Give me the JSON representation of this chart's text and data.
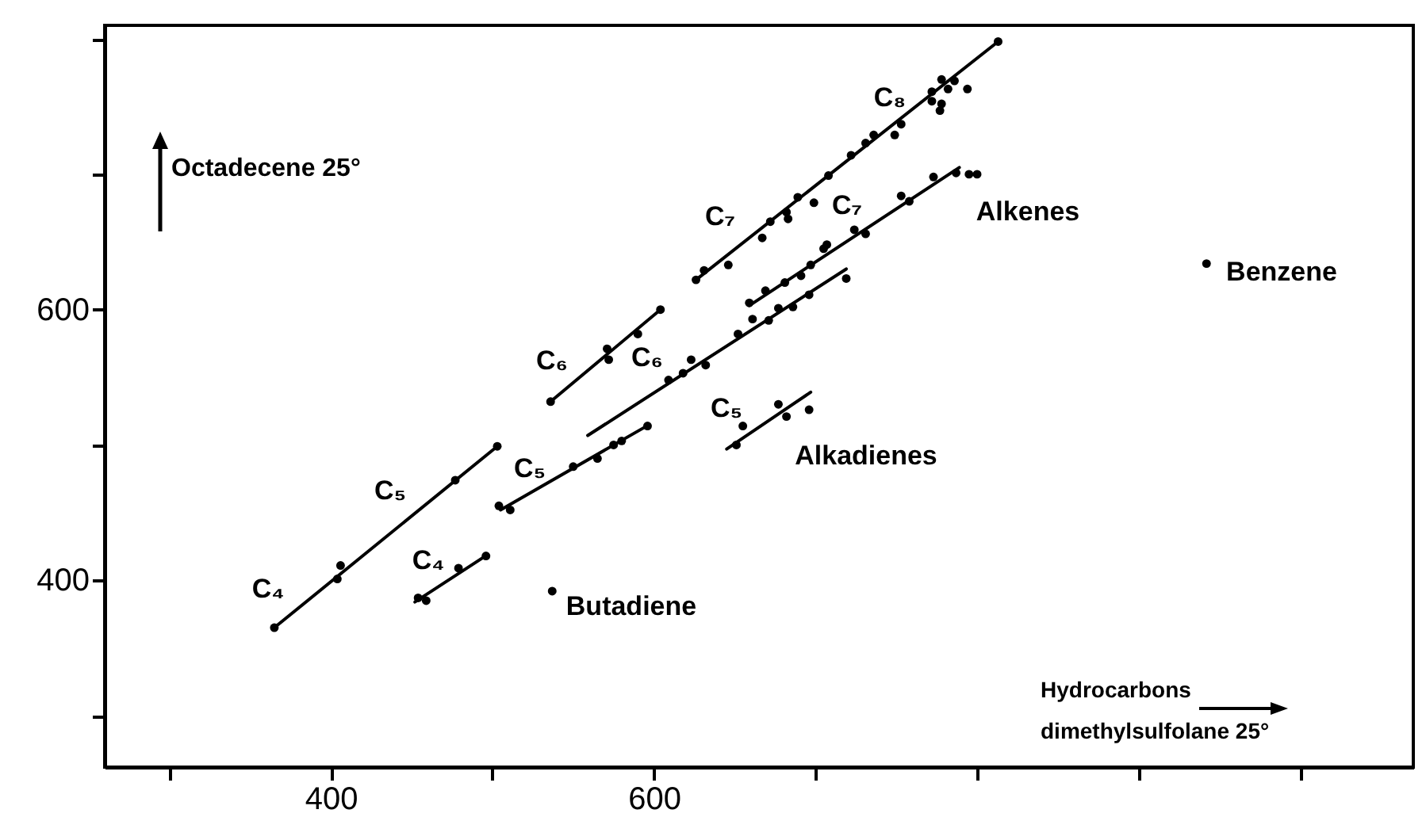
{
  "chart_data": {
    "type": "scatter",
    "xlabel": "Hydrocarbons\ndimethylsulfolane 25°",
    "ylabel": "Octadecene 25°",
    "xlim": [
      260,
      1070
    ],
    "ylim": [
      262,
      810
    ],
    "xticks": [
      {
        "value": 300,
        "label": null
      },
      400,
      {
        "value": 500,
        "label": null
      },
      600,
      {
        "value": 700,
        "label": null
      },
      {
        "value": 800,
        "label": null
      },
      {
        "value": 900,
        "label": null
      },
      {
        "value": 1000,
        "label": null
      }
    ],
    "yticks": [
      {
        "value": 300,
        "label": null
      },
      400,
      {
        "value": 500,
        "label": null
      },
      600,
      {
        "value": 700,
        "label": null
      },
      {
        "value": 800,
        "label": null
      }
    ],
    "grid": false,
    "series": [
      {
        "marker": "circle",
        "color": "#000000",
        "x": [
          365,
          404,
          406,
          477,
          503,
          536,
          571,
          572,
          590,
          604,
          626,
          631,
          646,
          667,
          672,
          683,
          682,
          689,
          699,
          708,
          722,
          731,
          736,
          749,
          753,
          772,
          778,
          786,
          794,
          778,
          777,
          772,
          782,
          813
        ],
        "values": [
          365,
          401,
          411,
          474,
          499,
          532,
          571,
          563,
          582,
          600,
          622,
          629,
          633,
          653,
          665,
          667,
          672,
          683,
          679,
          699,
          714,
          723,
          729,
          729,
          737,
          761,
          770,
          769,
          763,
          752,
          747,
          754,
          763,
          798
        ]
      },
      {
        "marker": "circle",
        "color": "#000000",
        "x": [
          454,
          459,
          479,
          496,
          504,
          511,
          550,
          565,
          575,
          580,
          596,
          609,
          618,
          623,
          632,
          652,
          661,
          671,
          677,
          686,
          696,
          719,
          659,
          669,
          681,
          691,
          697,
          705,
          707,
          724,
          731,
          753,
          758,
          773,
          787,
          795,
          800,
          651,
          655,
          677,
          682,
          696,
          537,
          942
        ],
        "values": [
          387,
          385,
          409,
          418,
          455,
          452,
          484,
          490,
          500,
          503,
          514,
          548,
          553,
          563,
          559,
          582,
          593,
          592,
          601,
          602,
          611,
          623,
          605,
          614,
          620,
          625,
          633,
          645,
          648,
          659,
          656,
          684,
          680,
          698,
          701,
          700,
          700,
          500,
          514,
          530,
          521,
          526,
          392,
          634
        ]
      },
      {
        "type": "line",
        "color": "#000000",
        "x": [
          365,
          503
        ],
        "values": [
          365,
          499
        ]
      },
      {
        "type": "line",
        "color": "#000000",
        "x": [
          452,
          497
        ],
        "values": [
          384,
          419
        ]
      },
      {
        "type": "line",
        "color": "#000000",
        "x": [
          505,
          597
        ],
        "values": [
          452,
          515
        ]
      },
      {
        "type": "line",
        "color": "#000000",
        "x": [
          536,
          604
        ],
        "values": [
          532,
          600
        ]
      },
      {
        "type": "line",
        "color": "#000000",
        "x": [
          559,
          719
        ],
        "values": [
          507,
          630
        ]
      },
      {
        "type": "line",
        "color": "#000000",
        "x": [
          659,
          789
        ],
        "values": [
          603,
          705
        ]
      },
      {
        "type": "line",
        "color": "#000000",
        "x": [
          626,
          813
        ],
        "values": [
          622,
          798
        ]
      },
      {
        "type": "line",
        "color": "#000000",
        "x": [
          645,
          697
        ],
        "values": [
          497,
          539
        ]
      }
    ],
    "annotations": [
      "C₄",
      "C₅",
      "C₄",
      "C₅",
      "C₆",
      "C₆",
      "C₅",
      "C₇",
      "C₇",
      "C₈",
      "Alkenes",
      "Alkadienes",
      "Butadiene",
      "Benzene"
    ]
  }
}
